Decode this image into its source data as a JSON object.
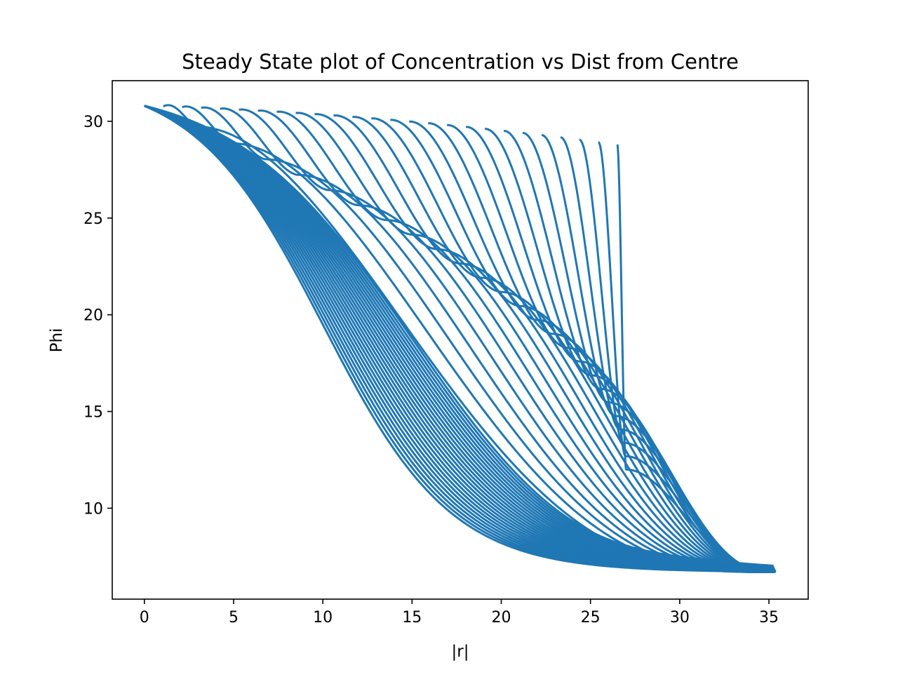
{
  "chart_data": {
    "type": "line",
    "title": "Steady State plot of Concentration vs Dist from Centre",
    "xlabel": "|r|",
    "ylabel": "Phi",
    "xlim": [
      -1.8,
      37.2
    ],
    "ylim": [
      5.3,
      32.1
    ],
    "xticks": [
      0,
      5,
      10,
      15,
      20,
      25,
      30,
      35
    ],
    "yticks": [
      10,
      15,
      20,
      25,
      30
    ],
    "grid": false,
    "legend": "none",
    "color": "#1f77b4",
    "curve_count": 26,
    "model": {
      "phi_center": 30.8,
      "phi_edge": 6.7,
      "r_max": 35.36,
      "loop_start_step": 1.06,
      "loop_peak_end": [
        27.2,
        11.6
      ]
    }
  }
}
